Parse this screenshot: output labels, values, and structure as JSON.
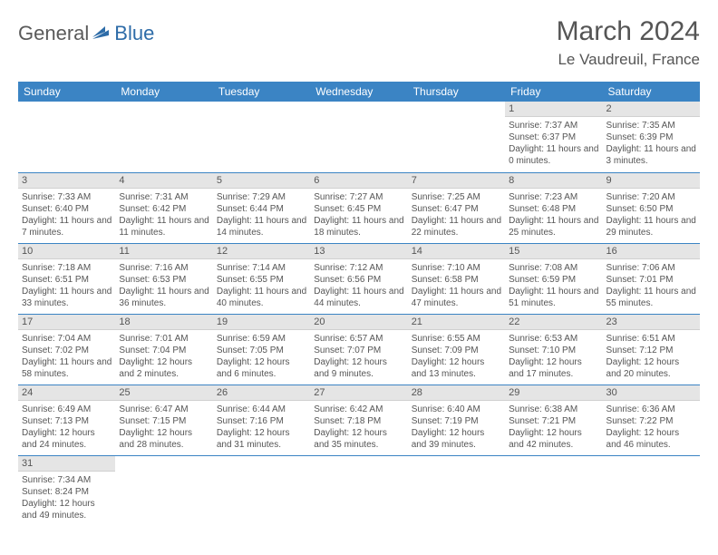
{
  "logo": {
    "part1": "General",
    "part2": "Blue"
  },
  "title": "March 2024",
  "location": "Le Vaudreuil, France",
  "colors": {
    "header_bg": "#3b84c4",
    "header_fg": "#ffffff",
    "daynum_bg": "#e5e5e5",
    "row_border": "#3b84c4",
    "text": "#555555",
    "logo_accent": "#2e6ca8"
  },
  "day_headers": [
    "Sunday",
    "Monday",
    "Tuesday",
    "Wednesday",
    "Thursday",
    "Friday",
    "Saturday"
  ],
  "weeks": [
    [
      null,
      null,
      null,
      null,
      null,
      {
        "d": "1",
        "sr": "7:37 AM",
        "ss": "6:37 PM",
        "dl": "11 hours and 0 minutes."
      },
      {
        "d": "2",
        "sr": "7:35 AM",
        "ss": "6:39 PM",
        "dl": "11 hours and 3 minutes."
      }
    ],
    [
      {
        "d": "3",
        "sr": "7:33 AM",
        "ss": "6:40 PM",
        "dl": "11 hours and 7 minutes."
      },
      {
        "d": "4",
        "sr": "7:31 AM",
        "ss": "6:42 PM",
        "dl": "11 hours and 11 minutes."
      },
      {
        "d": "5",
        "sr": "7:29 AM",
        "ss": "6:44 PM",
        "dl": "11 hours and 14 minutes."
      },
      {
        "d": "6",
        "sr": "7:27 AM",
        "ss": "6:45 PM",
        "dl": "11 hours and 18 minutes."
      },
      {
        "d": "7",
        "sr": "7:25 AM",
        "ss": "6:47 PM",
        "dl": "11 hours and 22 minutes."
      },
      {
        "d": "8",
        "sr": "7:23 AM",
        "ss": "6:48 PM",
        "dl": "11 hours and 25 minutes."
      },
      {
        "d": "9",
        "sr": "7:20 AM",
        "ss": "6:50 PM",
        "dl": "11 hours and 29 minutes."
      }
    ],
    [
      {
        "d": "10",
        "sr": "7:18 AM",
        "ss": "6:51 PM",
        "dl": "11 hours and 33 minutes."
      },
      {
        "d": "11",
        "sr": "7:16 AM",
        "ss": "6:53 PM",
        "dl": "11 hours and 36 minutes."
      },
      {
        "d": "12",
        "sr": "7:14 AM",
        "ss": "6:55 PM",
        "dl": "11 hours and 40 minutes."
      },
      {
        "d": "13",
        "sr": "7:12 AM",
        "ss": "6:56 PM",
        "dl": "11 hours and 44 minutes."
      },
      {
        "d": "14",
        "sr": "7:10 AM",
        "ss": "6:58 PM",
        "dl": "11 hours and 47 minutes."
      },
      {
        "d": "15",
        "sr": "7:08 AM",
        "ss": "6:59 PM",
        "dl": "11 hours and 51 minutes."
      },
      {
        "d": "16",
        "sr": "7:06 AM",
        "ss": "7:01 PM",
        "dl": "11 hours and 55 minutes."
      }
    ],
    [
      {
        "d": "17",
        "sr": "7:04 AM",
        "ss": "7:02 PM",
        "dl": "11 hours and 58 minutes."
      },
      {
        "d": "18",
        "sr": "7:01 AM",
        "ss": "7:04 PM",
        "dl": "12 hours and 2 minutes."
      },
      {
        "d": "19",
        "sr": "6:59 AM",
        "ss": "7:05 PM",
        "dl": "12 hours and 6 minutes."
      },
      {
        "d": "20",
        "sr": "6:57 AM",
        "ss": "7:07 PM",
        "dl": "12 hours and 9 minutes."
      },
      {
        "d": "21",
        "sr": "6:55 AM",
        "ss": "7:09 PM",
        "dl": "12 hours and 13 minutes."
      },
      {
        "d": "22",
        "sr": "6:53 AM",
        "ss": "7:10 PM",
        "dl": "12 hours and 17 minutes."
      },
      {
        "d": "23",
        "sr": "6:51 AM",
        "ss": "7:12 PM",
        "dl": "12 hours and 20 minutes."
      }
    ],
    [
      {
        "d": "24",
        "sr": "6:49 AM",
        "ss": "7:13 PM",
        "dl": "12 hours and 24 minutes."
      },
      {
        "d": "25",
        "sr": "6:47 AM",
        "ss": "7:15 PM",
        "dl": "12 hours and 28 minutes."
      },
      {
        "d": "26",
        "sr": "6:44 AM",
        "ss": "7:16 PM",
        "dl": "12 hours and 31 minutes."
      },
      {
        "d": "27",
        "sr": "6:42 AM",
        "ss": "7:18 PM",
        "dl": "12 hours and 35 minutes."
      },
      {
        "d": "28",
        "sr": "6:40 AM",
        "ss": "7:19 PM",
        "dl": "12 hours and 39 minutes."
      },
      {
        "d": "29",
        "sr": "6:38 AM",
        "ss": "7:21 PM",
        "dl": "12 hours and 42 minutes."
      },
      {
        "d": "30",
        "sr": "6:36 AM",
        "ss": "7:22 PM",
        "dl": "12 hours and 46 minutes."
      }
    ],
    [
      {
        "d": "31",
        "sr": "7:34 AM",
        "ss": "8:24 PM",
        "dl": "12 hours and 49 minutes."
      },
      null,
      null,
      null,
      null,
      null,
      null
    ]
  ],
  "labels": {
    "sunrise": "Sunrise:",
    "sunset": "Sunset:",
    "daylight": "Daylight:"
  }
}
